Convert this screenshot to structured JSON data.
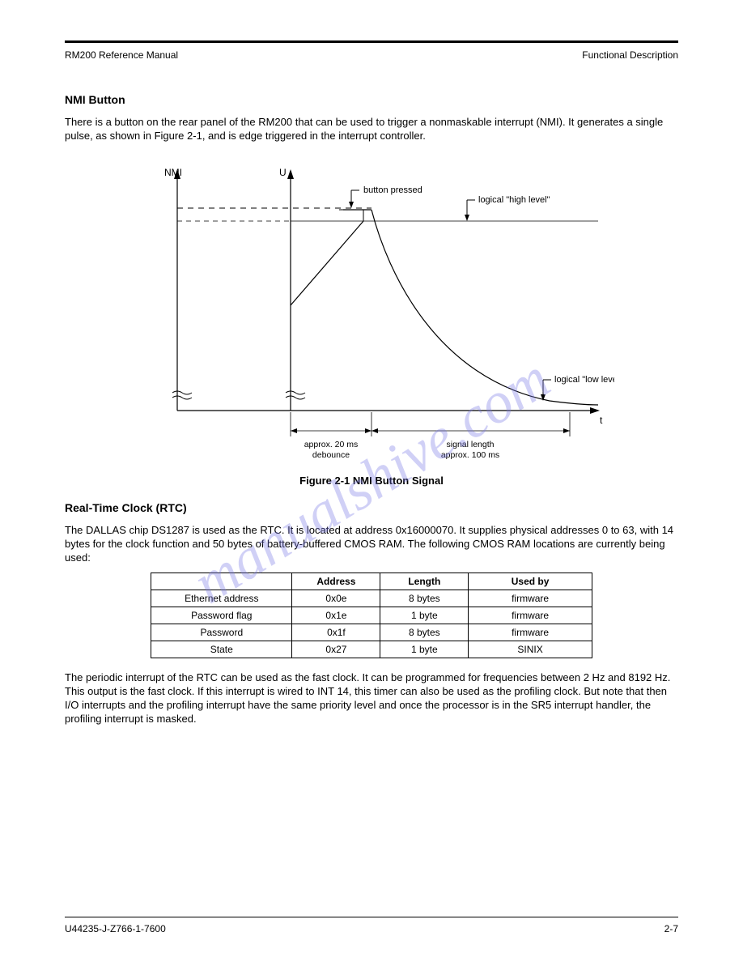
{
  "header": {
    "left": "RM200 Reference Manual",
    "right": "Functional Description"
  },
  "section1": {
    "title": "NMI Button",
    "para": "There is a button on the rear panel of the RM200 that can be used to trigger a nonmaskable interrupt (NMI). It generates a single pulse, as shown in Figure 2-1, and is edge triggered in the interrupt controller."
  },
  "figure": {
    "caption": "Figure 2-1  NMI Button Signal",
    "x_axis_label": "t",
    "y_axis_labels": {
      "left": "NMI",
      "right": "U"
    },
    "annotations": {
      "button_pressed": "button pressed",
      "logical_high": "logical \"high level\"",
      "logical_low": "logical \"low level\""
    },
    "dims": {
      "debounce_label": "approx. 20 ms debounce",
      "signal_length": "signal length\napprox. 100 ms"
    },
    "colors": {
      "line": "#000000",
      "bg": "#ffffff"
    }
  },
  "section2": {
    "title": "Real-Time Clock (RTC)",
    "para1": "The DALLAS chip DS1287 is used as the RTC. It is located at address 0x16000070. It supplies physical addresses 0 to 63, with 14 bytes for the clock function and 50 bytes of battery-buffered CMOS RAM. The following CMOS RAM locations are currently being used:",
    "para2": "The periodic interrupt of the RTC can be used as the fast clock. It can be programmed for frequencies between 2 Hz and 8192 Hz. This output is the fast clock. If this interrupt is wired to INT 14, this timer can also be used as the profiling clock. But note that then I/O interrupts and the profiling interrupt have the same priority level and once the processor is in the SR5 interrupt handler, the profiling interrupt is masked."
  },
  "table": {
    "columns": [
      "",
      "Address",
      "Length",
      "Used by"
    ],
    "rows": [
      [
        "Ethernet address",
        "0x0e",
        "8 bytes",
        "firmware"
      ],
      [
        "Password flag",
        "0x1e",
        "1 byte",
        "firmware"
      ],
      [
        "Password",
        "0x1f",
        "8 bytes",
        "firmware"
      ],
      [
        "State",
        "0x27",
        "1 byte",
        "SINIX"
      ]
    ],
    "col_widths": [
      "32%",
      "20%",
      "20%",
      "28%"
    ]
  },
  "footer": {
    "left": "U44235-J-Z766-1-7600",
    "right": "2-7"
  },
  "watermark": "manualshive.com"
}
